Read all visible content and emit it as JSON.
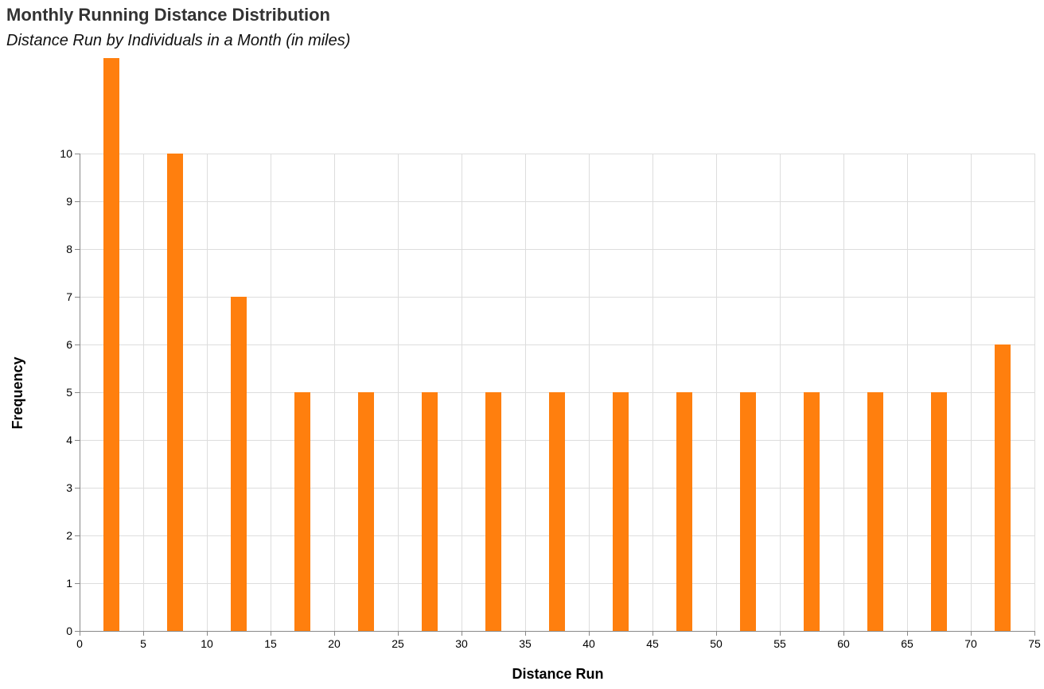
{
  "chart_data": {
    "type": "bar",
    "title": "Monthly Running Distance Distribution",
    "subtitle": "Distance Run by Individuals in a Month (in miles)",
    "xlabel": "Distance Run",
    "ylabel": "Frequency",
    "bin_width": 5,
    "x": [
      2.5,
      7.5,
      12.5,
      17.5,
      22.5,
      27.5,
      32.5,
      37.5,
      42.5,
      47.5,
      52.5,
      57.5,
      62.5,
      67.5,
      72.5
    ],
    "values": [
      12,
      10,
      7,
      5,
      5,
      5,
      5,
      5,
      5,
      5,
      5,
      5,
      5,
      5,
      6
    ],
    "xlim": [
      0,
      75
    ],
    "ylim": [
      0,
      12
    ],
    "x_ticks": [
      0,
      5,
      10,
      15,
      20,
      25,
      30,
      35,
      40,
      45,
      50,
      55,
      60,
      65,
      70,
      75
    ],
    "y_ticks": [
      0,
      1,
      2,
      3,
      4,
      5,
      6,
      7,
      8,
      9,
      10
    ],
    "grid": true,
    "bar_color": "#ff7f0e"
  }
}
